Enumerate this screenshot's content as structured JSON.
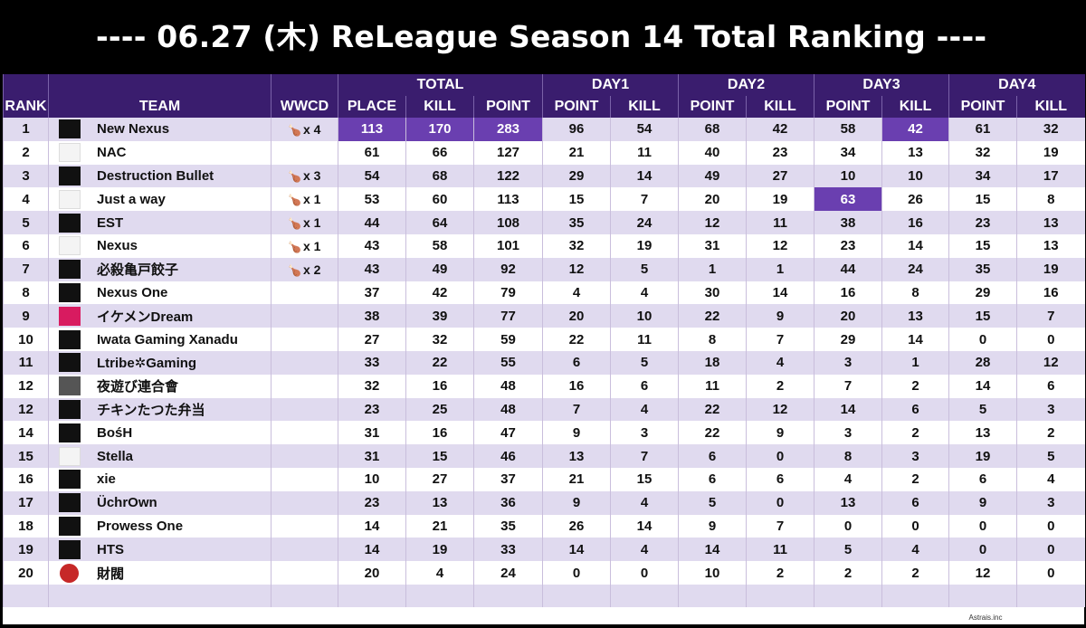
{
  "title": "---- 06.27 (木) ReLeague Season 14  Total Ranking ----",
  "credit": "Astrais.inc",
  "colors": {
    "header_bg": "#3a1d6e",
    "row_alt": "#e0daef",
    "highlight": "#6a3fb0"
  },
  "headers": {
    "rank": "RANK",
    "team": "TEAM",
    "wwcd": "WWCD",
    "total": "TOTAL",
    "day1": "DAY1",
    "day2": "DAY2",
    "day3": "DAY3",
    "day4": "DAY4",
    "place": "PLACE",
    "kill": "KILL",
    "point": "POINT"
  },
  "rows": [
    {
      "rank": "1",
      "team": "New Nexus",
      "logo": "pmrl-logo",
      "wwcd": "x 4",
      "place": "113",
      "kill": "170",
      "point": "283",
      "d1p": "96",
      "d1k": "54",
      "d2p": "68",
      "d2k": "42",
      "d3p": "58",
      "d3k": "42",
      "d4p": "61",
      "d4k": "32"
    },
    {
      "rank": "2",
      "team": "NAC",
      "logo": "nac-logo",
      "wwcd": "",
      "place": "61",
      "kill": "66",
      "point": "127",
      "d1p": "21",
      "d1k": "11",
      "d2p": "40",
      "d2k": "23",
      "d3p": "34",
      "d3k": "13",
      "d4p": "32",
      "d4k": "19"
    },
    {
      "rank": "3",
      "team": "Destruction Bullet",
      "logo": "pmrl-logo",
      "wwcd": "x 3",
      "place": "54",
      "kill": "68",
      "point": "122",
      "d1p": "29",
      "d1k": "14",
      "d2p": "49",
      "d2k": "27",
      "d3p": "10",
      "d3k": "10",
      "d4p": "34",
      "d4k": "17"
    },
    {
      "rank": "4",
      "team": "Just a way",
      "logo": "just-a-way-logo",
      "wwcd": "x 1",
      "place": "53",
      "kill": "60",
      "point": "113",
      "d1p": "15",
      "d1k": "7",
      "d2p": "20",
      "d2k": "19",
      "d3p": "63",
      "d3k": "26",
      "d4p": "15",
      "d4k": "8"
    },
    {
      "rank": "5",
      "team": "EST",
      "logo": "est-logo",
      "wwcd": "x 1",
      "place": "44",
      "kill": "64",
      "point": "108",
      "d1p": "35",
      "d1k": "24",
      "d2p": "12",
      "d2k": "11",
      "d3p": "38",
      "d3k": "16",
      "d4p": "23",
      "d4k": "13"
    },
    {
      "rank": "6",
      "team": "Nexus",
      "logo": "nexus-logo",
      "wwcd": "x 1",
      "place": "43",
      "kill": "58",
      "point": "101",
      "d1p": "32",
      "d1k": "19",
      "d2p": "31",
      "d2k": "12",
      "d3p": "23",
      "d3k": "14",
      "d4p": "15",
      "d4k": "13"
    },
    {
      "rank": "7",
      "team": "必殺亀戸餃子",
      "logo": "pmrl-logo",
      "wwcd": "x 2",
      "place": "43",
      "kill": "49",
      "point": "92",
      "d1p": "12",
      "d1k": "5",
      "d2p": "1",
      "d2k": "1",
      "d3p": "44",
      "d3k": "24",
      "d4p": "35",
      "d4k": "19"
    },
    {
      "rank": "8",
      "team": "Nexus One",
      "logo": "pmrl-logo",
      "wwcd": "",
      "place": "37",
      "kill": "42",
      "point": "79",
      "d1p": "4",
      "d1k": "4",
      "d2p": "30",
      "d2k": "14",
      "d3p": "16",
      "d3k": "8",
      "d4p": "29",
      "d4k": "16"
    },
    {
      "rank": "9",
      "team": "イケメンDream",
      "logo": "ikemen-dream-logo",
      "wwcd": "",
      "place": "38",
      "kill": "39",
      "point": "77",
      "d1p": "20",
      "d1k": "10",
      "d2p": "22",
      "d2k": "9",
      "d3p": "20",
      "d3k": "13",
      "d4p": "15",
      "d4k": "7"
    },
    {
      "rank": "10",
      "team": "Iwata Gaming Xanadu",
      "logo": "iwata-logo",
      "wwcd": "",
      "place": "27",
      "kill": "32",
      "point": "59",
      "d1p": "22",
      "d1k": "11",
      "d2p": "8",
      "d2k": "7",
      "d3p": "29",
      "d3k": "14",
      "d4p": "0",
      "d4k": "0"
    },
    {
      "rank": "11",
      "team": "Ltribe✲Gaming",
      "logo": "ltribe-logo",
      "wwcd": "",
      "place": "33",
      "kill": "22",
      "point": "55",
      "d1p": "6",
      "d1k": "5",
      "d2p": "18",
      "d2k": "4",
      "d3p": "3",
      "d3k": "1",
      "d4p": "28",
      "d4k": "12"
    },
    {
      "rank": "12",
      "team": "夜遊び連合會",
      "logo": "wolf-logo",
      "wwcd": "",
      "place": "32",
      "kill": "16",
      "point": "48",
      "d1p": "16",
      "d1k": "6",
      "d2p": "11",
      "d2k": "2",
      "d3p": "7",
      "d3k": "2",
      "d4p": "14",
      "d4k": "6"
    },
    {
      "rank": "12",
      "team": "チキンたつた弁当",
      "logo": "pmrl-logo",
      "wwcd": "",
      "place": "23",
      "kill": "25",
      "point": "48",
      "d1p": "7",
      "d1k": "4",
      "d2p": "22",
      "d2k": "12",
      "d3p": "14",
      "d3k": "6",
      "d4p": "5",
      "d4k": "3"
    },
    {
      "rank": "14",
      "team": "BośH",
      "logo": "pmrl-logo",
      "wwcd": "",
      "place": "31",
      "kill": "16",
      "point": "47",
      "d1p": "9",
      "d1k": "3",
      "d2p": "22",
      "d2k": "9",
      "d3p": "3",
      "d3k": "2",
      "d4p": "13",
      "d4k": "2"
    },
    {
      "rank": "15",
      "team": "Stella",
      "logo": "stella-logo",
      "wwcd": "",
      "place": "31",
      "kill": "15",
      "point": "46",
      "d1p": "13",
      "d1k": "7",
      "d2p": "6",
      "d2k": "0",
      "d3p": "8",
      "d3k": "3",
      "d4p": "19",
      "d4k": "5"
    },
    {
      "rank": "16",
      "team": "xie",
      "logo": "pmrl-logo",
      "wwcd": "",
      "place": "10",
      "kill": "27",
      "point": "37",
      "d1p": "21",
      "d1k": "15",
      "d2p": "6",
      "d2k": "6",
      "d3p": "4",
      "d3k": "2",
      "d4p": "6",
      "d4k": "4"
    },
    {
      "rank": "17",
      "team": "ÜchrOwn",
      "logo": "pmrl-logo",
      "wwcd": "",
      "place": "23",
      "kill": "13",
      "point": "36",
      "d1p": "9",
      "d1k": "4",
      "d2p": "5",
      "d2k": "0",
      "d3p": "13",
      "d3k": "6",
      "d4p": "9",
      "d4k": "3"
    },
    {
      "rank": "18",
      "team": "Prowess One",
      "logo": "pmrl-logo",
      "wwcd": "",
      "place": "14",
      "kill": "21",
      "point": "35",
      "d1p": "26",
      "d1k": "14",
      "d2p": "9",
      "d2k": "7",
      "d3p": "0",
      "d3k": "0",
      "d4p": "0",
      "d4k": "0"
    },
    {
      "rank": "19",
      "team": "HTS",
      "logo": "pmrl-logo",
      "wwcd": "",
      "place": "14",
      "kill": "19",
      "point": "33",
      "d1p": "14",
      "d1k": "4",
      "d2p": "14",
      "d2k": "11",
      "d3p": "5",
      "d3k": "4",
      "d4p": "0",
      "d4k": "0"
    },
    {
      "rank": "20",
      "team": "財閥",
      "logo": "zaibatsu-logo",
      "wwcd": "",
      "place": "20",
      "kill": "4",
      "point": "24",
      "d1p": "0",
      "d1k": "0",
      "d2p": "10",
      "d2k": "2",
      "d3p": "2",
      "d3k": "2",
      "d4p": "12",
      "d4k": "0"
    }
  ]
}
